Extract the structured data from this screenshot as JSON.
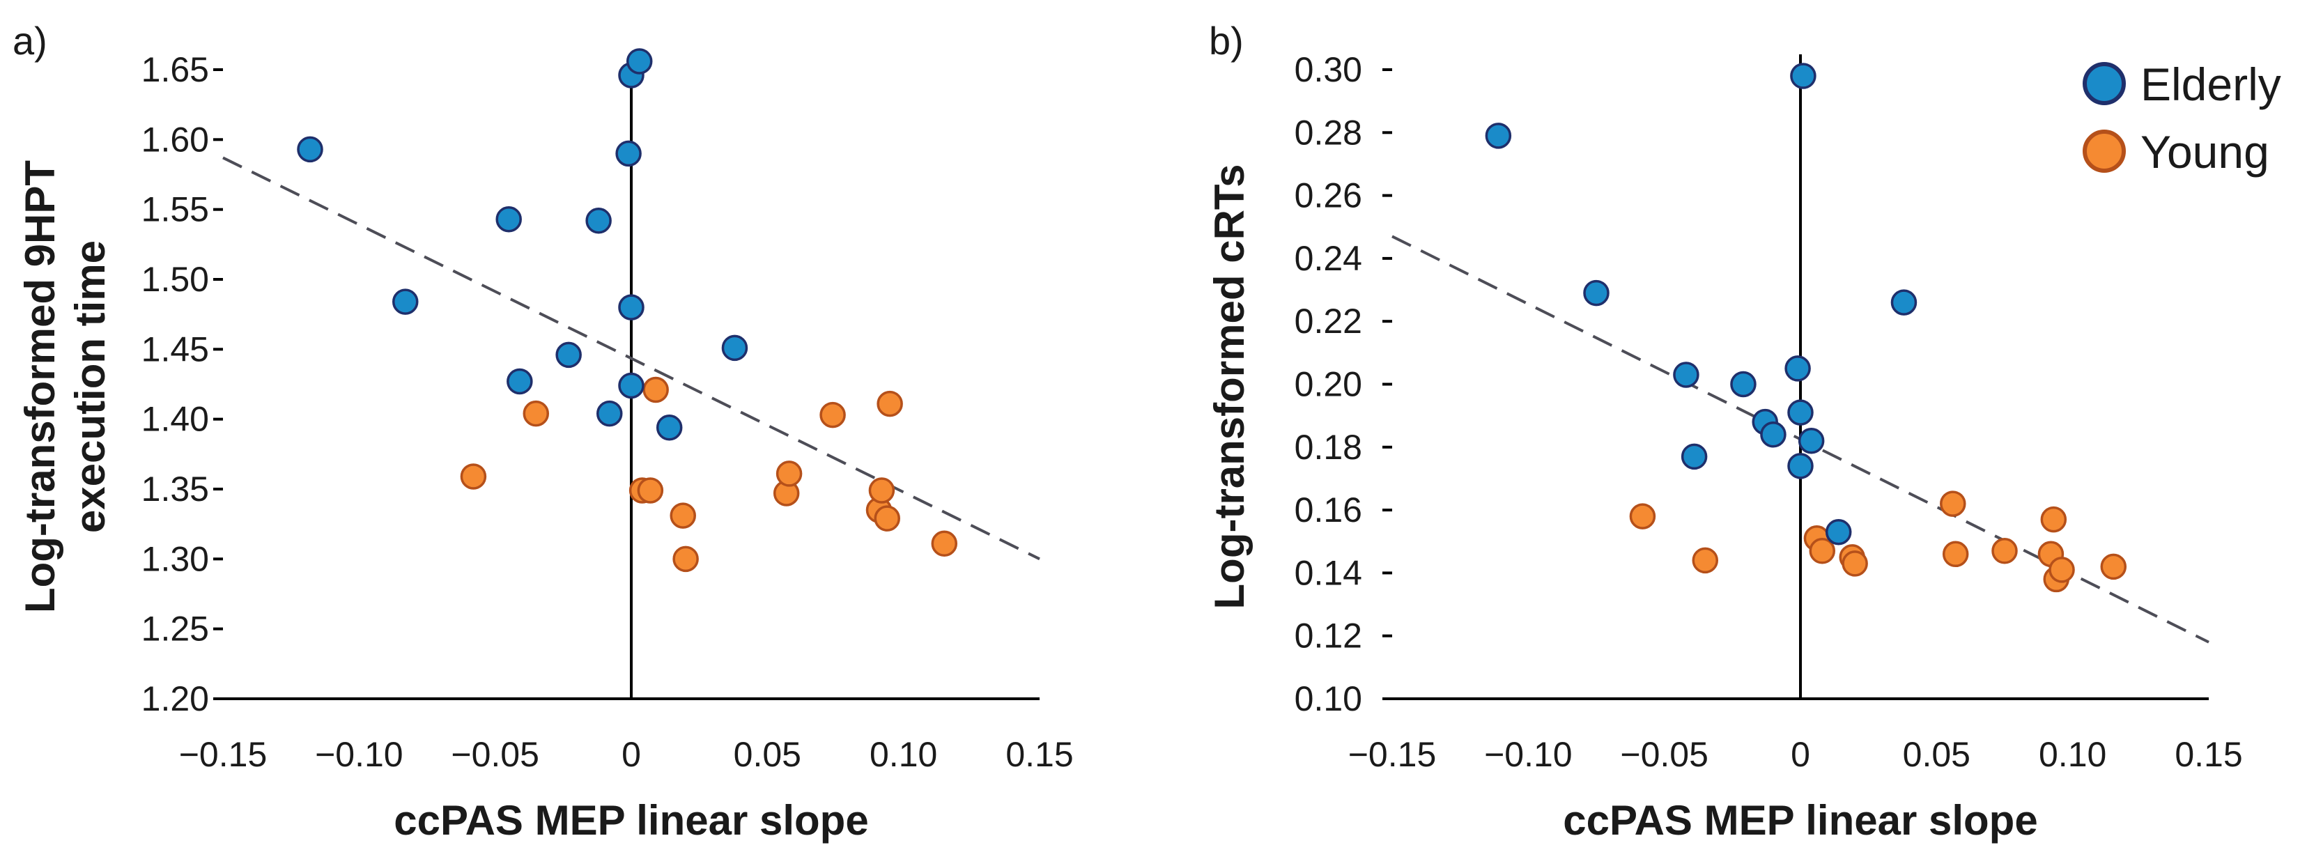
{
  "chart_data": [
    {
      "type": "scatter",
      "panel_label": "a)",
      "xlabel": "ccPAS MEP linear slope",
      "ylabel_lines": [
        "Log-transformed 9HPT",
        "execution time"
      ],
      "xlim": [
        -0.15,
        0.15
      ],
      "ylim": [
        1.2,
        1.65
      ],
      "xticks": [
        -0.15,
        -0.1,
        -0.05,
        0,
        0.05,
        0.1,
        0.15
      ],
      "xtick_labels": [
        "−0.15",
        "−0.10",
        "−0.05",
        "0",
        "0.05",
        "0.10",
        "0.15"
      ],
      "yticks": [
        1.2,
        1.25,
        1.3,
        1.35,
        1.4,
        1.45,
        1.5,
        1.55,
        1.6,
        1.65
      ],
      "ytick_labels": [
        "1.20",
        "1.25",
        "1.30",
        "1.35",
        "1.40",
        "1.45",
        "1.50",
        "1.55",
        "1.60",
        "1.65"
      ],
      "trendline": {
        "x": [
          -0.15,
          0.15
        ],
        "y": [
          1.587,
          1.3
        ]
      },
      "series": [
        {
          "name": "Elderly",
          "points": [
            {
              "x": -0.118,
              "y": 1.593
            },
            {
              "x": -0.083,
              "y": 1.484
            },
            {
              "x": -0.045,
              "y": 1.543
            },
            {
              "x": -0.041,
              "y": 1.427
            },
            {
              "x": -0.023,
              "y": 1.446
            },
            {
              "x": -0.012,
              "y": 1.542
            },
            {
              "x": -0.008,
              "y": 1.404
            },
            {
              "x": -0.001,
              "y": 1.59
            },
            {
              "x": 0.0,
              "y": 1.646
            },
            {
              "x": 0.003,
              "y": 1.656
            },
            {
              "x": 0.0,
              "y": 1.48
            },
            {
              "x": 0.0,
              "y": 1.424
            },
            {
              "x": 0.014,
              "y": 1.394
            },
            {
              "x": 0.038,
              "y": 1.451
            }
          ]
        },
        {
          "name": "Young",
          "points": [
            {
              "x": -0.058,
              "y": 1.359
            },
            {
              "x": -0.035,
              "y": 1.404
            },
            {
              "x": 0.004,
              "y": 1.349
            },
            {
              "x": 0.007,
              "y": 1.349
            },
            {
              "x": 0.009,
              "y": 1.421
            },
            {
              "x": 0.019,
              "y": 1.331
            },
            {
              "x": 0.02,
              "y": 1.3
            },
            {
              "x": 0.057,
              "y": 1.347
            },
            {
              "x": 0.058,
              "y": 1.361
            },
            {
              "x": 0.074,
              "y": 1.403
            },
            {
              "x": 0.091,
              "y": 1.335
            },
            {
              "x": 0.092,
              "y": 1.349
            },
            {
              "x": 0.094,
              "y": 1.329
            },
            {
              "x": 0.095,
              "y": 1.411
            },
            {
              "x": 0.115,
              "y": 1.311
            }
          ]
        }
      ]
    },
    {
      "type": "scatter",
      "panel_label": "b)",
      "xlabel": "ccPAS MEP linear slope",
      "ylabel_lines": [
        "Log-transformed cRTs"
      ],
      "xlim": [
        -0.15,
        0.15
      ],
      "ylim": [
        0.1,
        0.3
      ],
      "xticks": [
        -0.15,
        -0.1,
        -0.05,
        0,
        0.05,
        0.1,
        0.15
      ],
      "xtick_labels": [
        "−0.15",
        "−0.10",
        "−0.05",
        "0",
        "0.05",
        "0.10",
        "0.15"
      ],
      "yticks": [
        0.1,
        0.12,
        0.14,
        0.16,
        0.18,
        0.2,
        0.22,
        0.24,
        0.26,
        0.28,
        0.3
      ],
      "ytick_labels": [
        "0.10",
        "0.12",
        "0.14",
        "0.16",
        "0.18",
        "0.20",
        "0.22",
        "0.24",
        "0.26",
        "0.28",
        "0.30"
      ],
      "trendline": {
        "x": [
          -0.15,
          0.15
        ],
        "y": [
          0.247,
          0.118
        ]
      },
      "series": [
        {
          "name": "Elderly",
          "points": [
            {
              "x": -0.111,
              "y": 0.279
            },
            {
              "x": -0.075,
              "y": 0.229
            },
            {
              "x": -0.042,
              "y": 0.203
            },
            {
              "x": -0.039,
              "y": 0.177
            },
            {
              "x": -0.021,
              "y": 0.2
            },
            {
              "x": -0.013,
              "y": 0.188
            },
            {
              "x": -0.01,
              "y": 0.184
            },
            {
              "x": -0.001,
              "y": 0.205
            },
            {
              "x": 0.0,
              "y": 0.191
            },
            {
              "x": 0.0,
              "y": 0.174
            },
            {
              "x": 0.001,
              "y": 0.298
            },
            {
              "x": 0.004,
              "y": 0.182
            },
            {
              "x": 0.014,
              "y": 0.153
            },
            {
              "x": 0.038,
              "y": 0.226
            }
          ]
        },
        {
          "name": "Young",
          "points": [
            {
              "x": -0.058,
              "y": 0.158
            },
            {
              "x": -0.035,
              "y": 0.144
            },
            {
              "x": 0.006,
              "y": 0.151
            },
            {
              "x": 0.008,
              "y": 0.147
            },
            {
              "x": 0.019,
              "y": 0.145
            },
            {
              "x": 0.02,
              "y": 0.143
            },
            {
              "x": 0.056,
              "y": 0.162
            },
            {
              "x": 0.057,
              "y": 0.146
            },
            {
              "x": 0.075,
              "y": 0.147
            },
            {
              "x": 0.092,
              "y": 0.146
            },
            {
              "x": 0.093,
              "y": 0.157
            },
            {
              "x": 0.094,
              "y": 0.138
            },
            {
              "x": 0.096,
              "y": 0.141
            },
            {
              "x": 0.115,
              "y": 0.142
            }
          ]
        }
      ]
    }
  ],
  "legend": {
    "entries": [
      {
        "label": "Elderly",
        "fill": "#1a8bc9",
        "stroke": "#1f2f6b"
      },
      {
        "label": "Young",
        "fill": "#f58a32",
        "stroke": "#b5501a"
      }
    ]
  },
  "colors": {
    "elderly_fill": "#1a8bc9",
    "elderly_stroke": "#1f2f6b",
    "young_fill": "#f58a32",
    "young_stroke": "#b5501a",
    "trendline": "#4d4d57",
    "axis": "#000000"
  }
}
